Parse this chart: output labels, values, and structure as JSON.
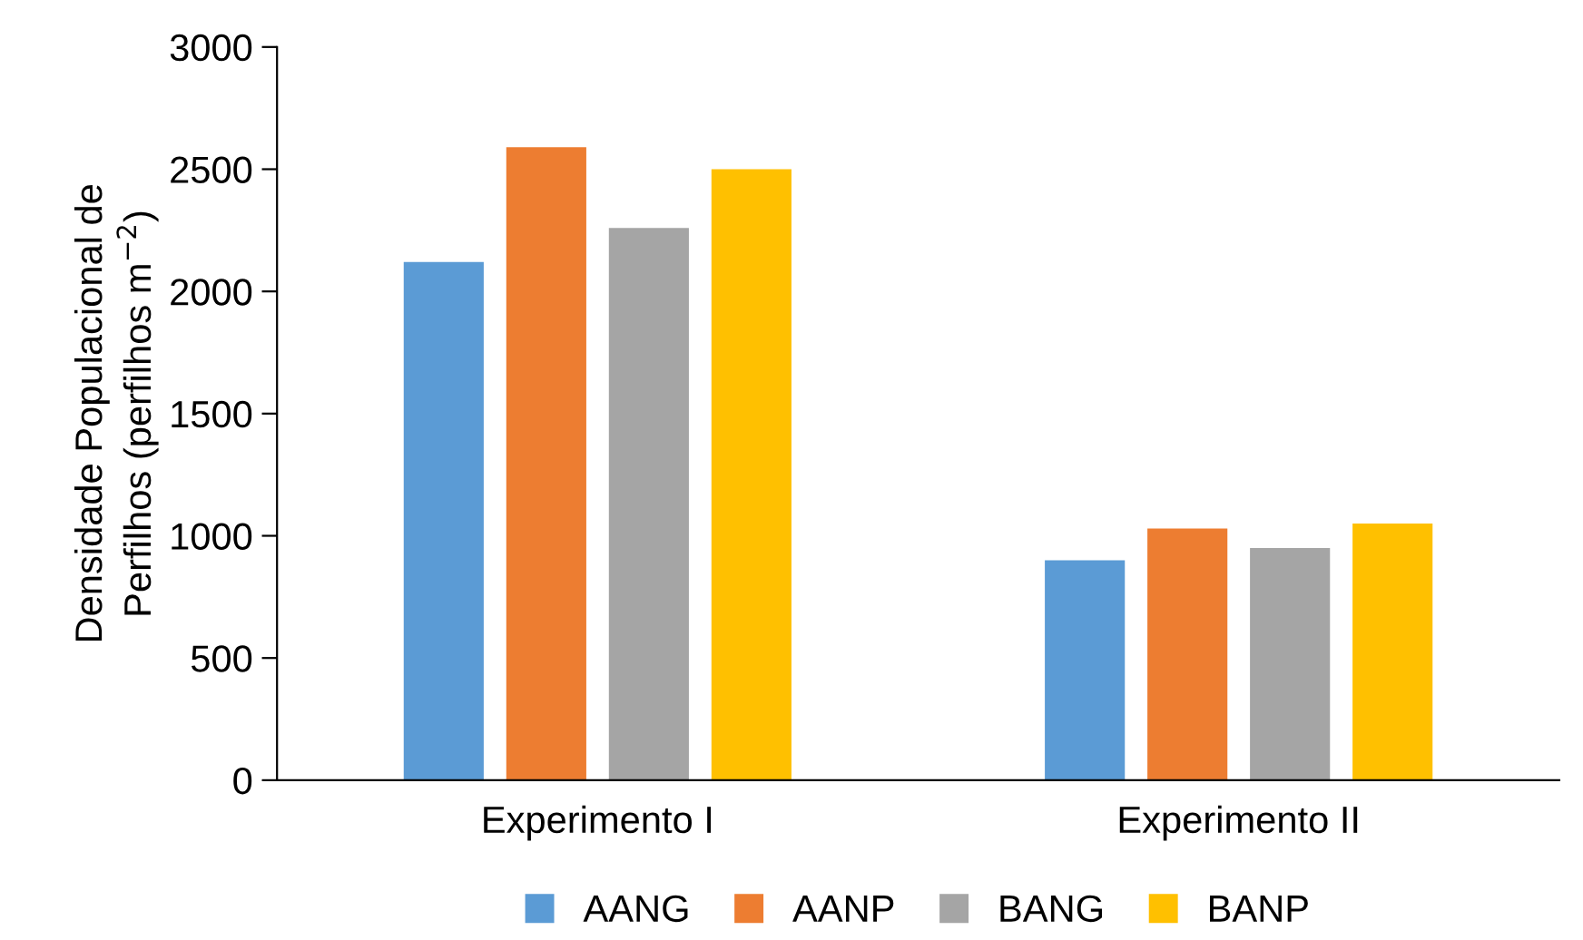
{
  "chart_data": {
    "type": "bar",
    "ylabel": "Densidade Populacional de\nPerfilhos (perfilhos m$^{−2}$)",
    "categories": [
      "Experimento I",
      "Experimento II"
    ],
    "series": [
      {
        "name": "AANG",
        "color": "#5b9bd5",
        "values": [
          2120,
          900
        ]
      },
      {
        "name": "AANP",
        "color": "#ed7d31",
        "values": [
          2590,
          1030
        ]
      },
      {
        "name": "BANG",
        "color": "#a5a5a5",
        "values": [
          2260,
          950
        ]
      },
      {
        "name": "BANP",
        "color": "#ffc000",
        "values": [
          2500,
          1050
        ]
      }
    ],
    "ylim": [
      0,
      3000
    ],
    "yticks": [
      0,
      500,
      1000,
      1500,
      2000,
      2500,
      3000
    ],
    "grid": false,
    "legend": "bottom"
  }
}
